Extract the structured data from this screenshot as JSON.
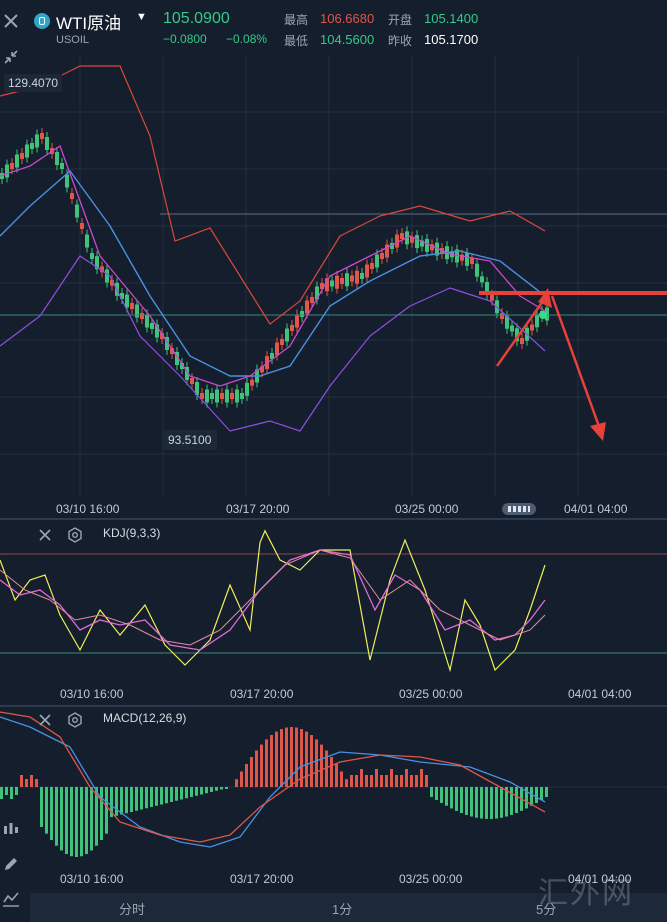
{
  "header": {
    "symbol_name": "WTI原油",
    "symbol_code": "USOIL",
    "price": "105.0900",
    "change": "−0.0800",
    "change_pct": "−0.08%",
    "high_label": "最高",
    "high_value": "106.6680",
    "low_label": "最低",
    "low_value": "104.5600",
    "open_label": "开盘",
    "open_value": "105.1400",
    "prev_close_label": "昨收",
    "prev_close_value": "105.1700"
  },
  "main_chart": {
    "high_marker": "129.4070",
    "low_marker": "93.5100",
    "x_labels": [
      "03/10 16:00",
      "03/17 20:00",
      "03/25 00:00",
      "04/01 04:00"
    ]
  },
  "kdj": {
    "title": "KDJ(9,3,3)",
    "x_labels": [
      "03/10 16:00",
      "03/17 20:00",
      "03/25 00:00",
      "04/01 04:00"
    ]
  },
  "macd": {
    "title": "MACD(12,26,9)",
    "x_labels": [
      "03/10 16:00",
      "03/17 20:00",
      "03/25 00:00",
      "04/01 04:00"
    ]
  },
  "bottom_bar": {
    "tabs": [
      "分时",
      "1分",
      "5分"
    ]
  },
  "watermark": "汇外网",
  "colors": {
    "background": "#141e2c",
    "up": "#e0564a",
    "down": "#3fc27a",
    "price_up": "#36c98a",
    "annotation": "#e8403a",
    "kdj_k": "#f0ee5a",
    "kdj_d": "#e06ad8",
    "macd_dif": "#4a90e2",
    "macd_dea": "#e0564a"
  }
}
